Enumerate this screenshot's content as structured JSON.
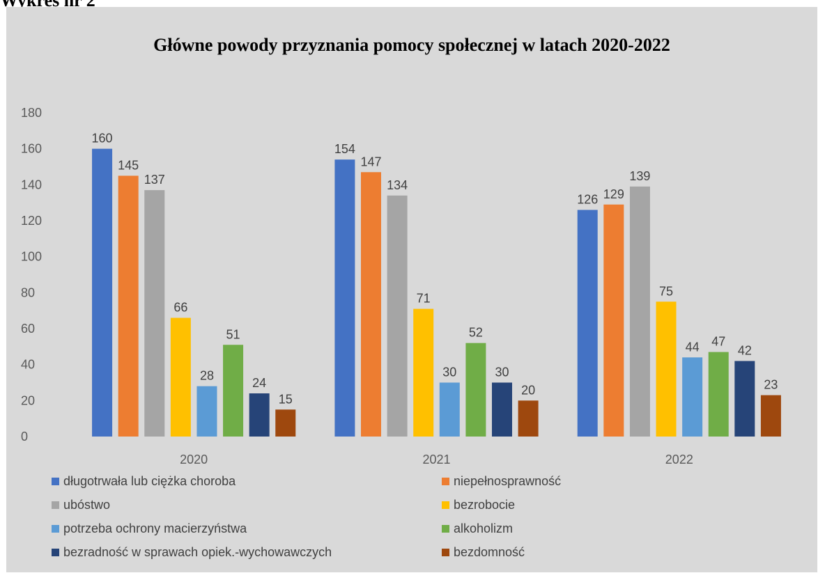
{
  "page": {
    "heading": "Wykres nr 2"
  },
  "chart_data": {
    "type": "bar",
    "title": "Główne powody przyznania pomocy społecznej w latach 2020-2022",
    "xlabel": "",
    "ylabel": "",
    "ylim": [
      0,
      180
    ],
    "yticks": [
      "0",
      "20",
      "40",
      "60",
      "80",
      "100",
      "120",
      "140",
      "160",
      "180"
    ],
    "categories": [
      "2020",
      "2021",
      "2022"
    ],
    "grid": false,
    "legend_position": "bottom",
    "series": [
      {
        "name": "długotrwała lub ciężka choroba",
        "color": "#4472c4",
        "values": [
          160,
          154,
          126
        ]
      },
      {
        "name": "niepełnosprawność",
        "color": "#ed7d31",
        "values": [
          145,
          147,
          129
        ]
      },
      {
        "name": "ubóstwo",
        "color": "#a5a5a5",
        "values": [
          137,
          134,
          139
        ]
      },
      {
        "name": "bezrobocie",
        "color": "#ffc000",
        "values": [
          66,
          71,
          75
        ]
      },
      {
        "name": "potrzeba ochrony macierzyństwa",
        "color": "#5b9bd5",
        "values": [
          28,
          30,
          44
        ]
      },
      {
        "name": "alkoholizm",
        "color": "#70ad47",
        "values": [
          51,
          52,
          47
        ]
      },
      {
        "name": "bezradność w sprawach opiek.-wychowawczych",
        "color": "#264478",
        "values": [
          24,
          30,
          42
        ]
      },
      {
        "name": "bezdomność",
        "color": "#9e480e",
        "values": [
          15,
          20,
          23
        ]
      }
    ]
  }
}
